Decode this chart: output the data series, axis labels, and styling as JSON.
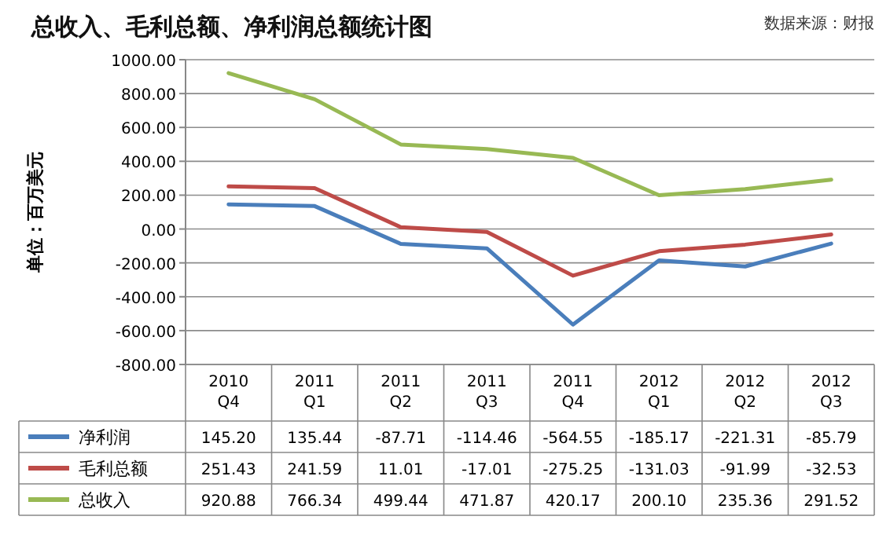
{
  "chart_data": {
    "type": "line",
    "title": "总收入、毛利总额、净利润总额统计图",
    "annotations": [
      "数据来源：财报"
    ],
    "ylabel": "单位：百万美元",
    "categories": [
      "2010 Q4",
      "2011 Q1",
      "2011 Q2",
      "2011 Q3",
      "2011 Q4",
      "2012 Q1",
      "2012 Q2",
      "2012 Q3"
    ],
    "series": [
      {
        "name": "净利润",
        "color": "#4a7ebb",
        "values": [
          145.2,
          135.44,
          -87.71,
          -114.46,
          -564.55,
          -185.17,
          -221.31,
          -85.79
        ],
        "value_labels": [
          "145.20",
          "135.44",
          "-87.71",
          "-114.46",
          "-564.55",
          "-185.17",
          "-221.31",
          "-85.79"
        ]
      },
      {
        "name": "毛利总额",
        "color": "#be4b48",
        "values": [
          251.43,
          241.59,
          11.01,
          -17.01,
          -275.25,
          -131.03,
          -91.99,
          -32.53
        ],
        "value_labels": [
          "251.43",
          "241.59",
          "11.01",
          "-17.01",
          "-275.25",
          "-131.03",
          "-91.99",
          "-32.53"
        ]
      },
      {
        "name": "总收入",
        "color": "#98b954",
        "values": [
          920.88,
          766.34,
          499.44,
          471.87,
          420.17,
          200.1,
          235.36,
          291.52
        ],
        "value_labels": [
          "920.88",
          "766.34",
          "499.44",
          "471.87",
          "420.17",
          "200.10",
          "235.36",
          "291.52"
        ]
      }
    ],
    "ylim": [
      -800,
      1000
    ],
    "yticks": [
      {
        "value": -800,
        "label": "-800.00"
      },
      {
        "value": -600,
        "label": "-600.00"
      },
      {
        "value": -400,
        "label": "-400.00"
      },
      {
        "value": -200,
        "label": "-200.00"
      },
      {
        "value": 0,
        "label": "0.00"
      },
      {
        "value": 200,
        "label": "200.00"
      },
      {
        "value": 400,
        "label": "400.00"
      },
      {
        "value": 600,
        "label": "600.00"
      },
      {
        "value": 800,
        "label": "800.00"
      },
      {
        "value": 1000,
        "label": "1000.00"
      }
    ],
    "grid": "y",
    "legend": "bottom"
  }
}
